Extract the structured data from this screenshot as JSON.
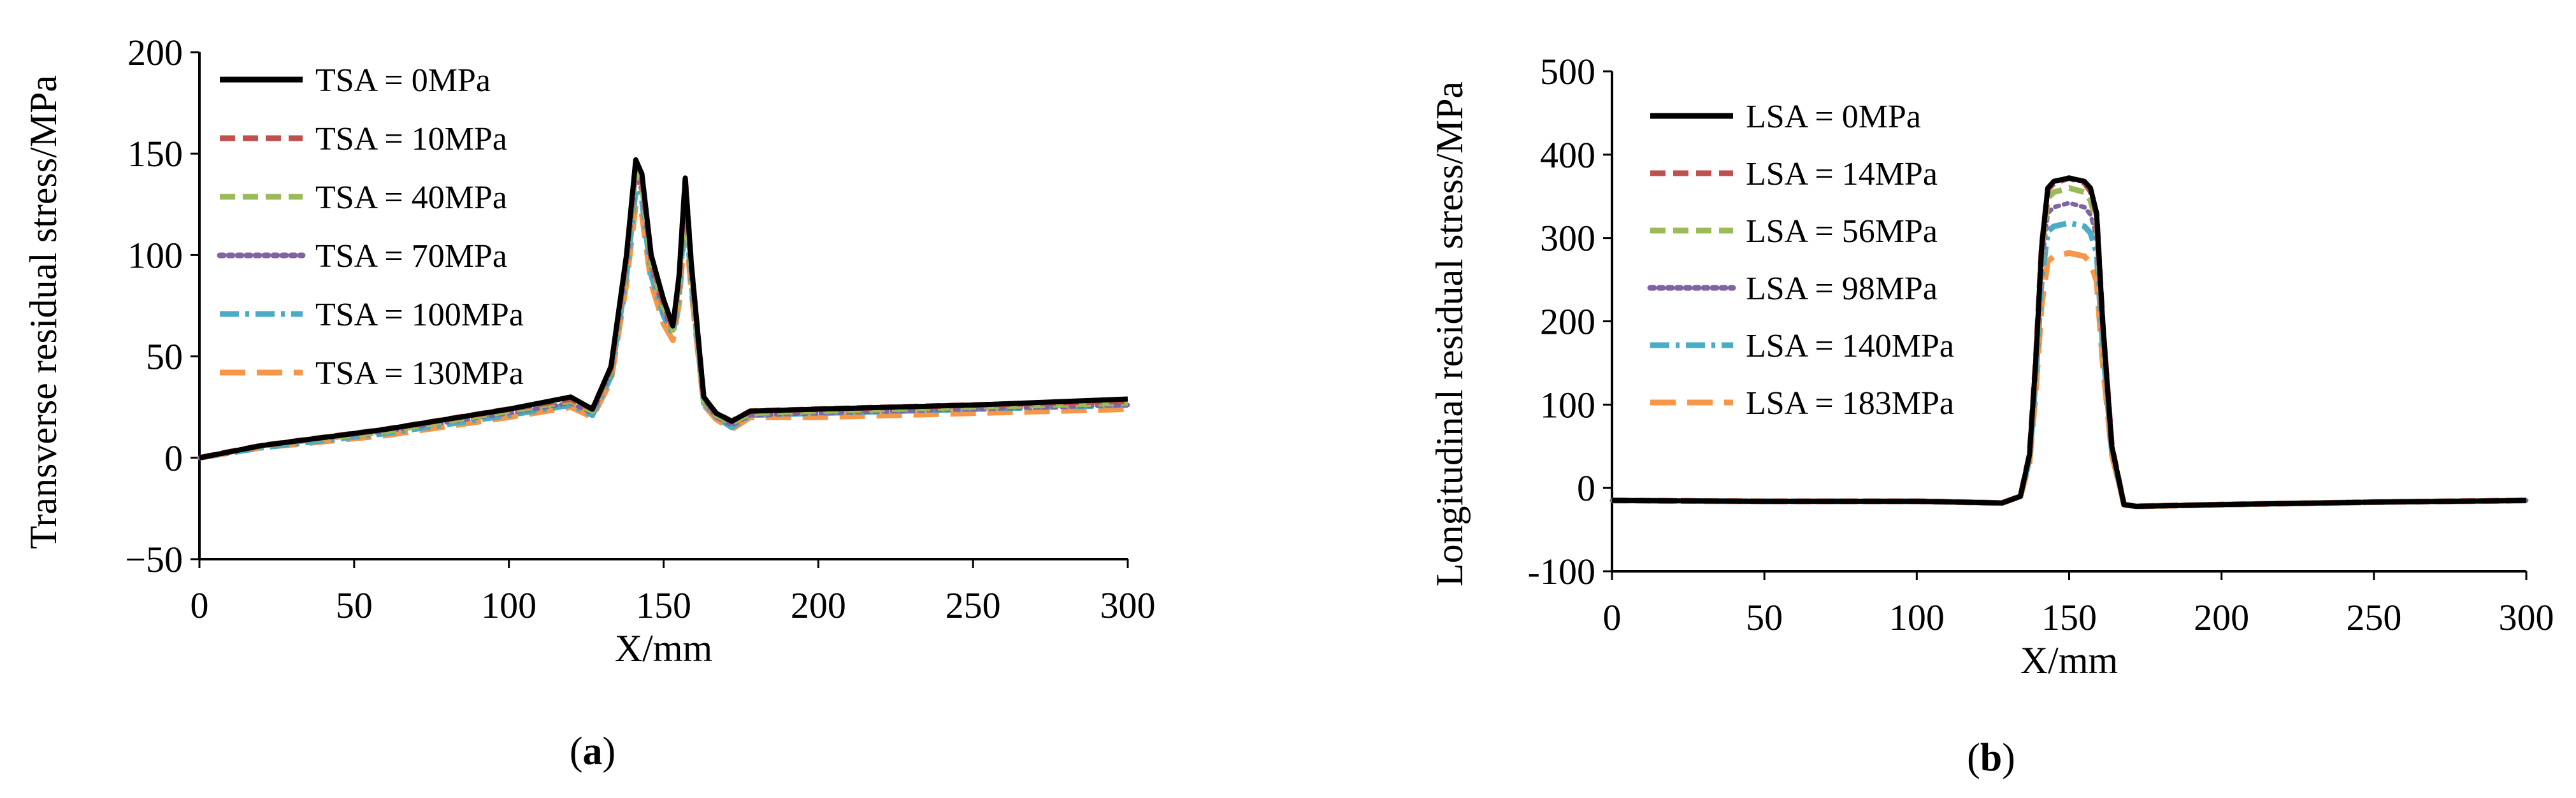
{
  "colors": {
    "s0": "#000000",
    "s1": "#c0504d",
    "s2": "#9bbb59",
    "s3": "#8064a2",
    "s4": "#4bacc6",
    "s5": "#f79646"
  },
  "chart_data": [
    {
      "type": "line",
      "panel": "(a)",
      "panel_open": "(",
      "panel_letter": "a",
      "panel_close": ")",
      "xlabel": "X/mm",
      "ylabel": "Transverse residual stress/MPa",
      "xlim": [
        0,
        300
      ],
      "ylim": [
        -50,
        200
      ],
      "xticks": [
        0,
        50,
        100,
        150,
        200,
        250,
        300
      ],
      "yticks": [
        -50,
        0,
        50,
        100,
        150,
        200
      ],
      "ytick_labels": [
        "−50",
        "0",
        "50",
        "100",
        "150",
        "200"
      ],
      "grid": false,
      "legend_position": "top-left",
      "series": [
        {
          "name": "TSA = 0MPa",
          "style": "solid",
          "x": [
            0,
            20,
            60,
            100,
            120,
            127,
            133,
            138,
            141,
            143,
            146,
            150,
            153,
            155,
            157,
            159,
            163,
            167,
            172,
            178,
            200,
            250,
            300
          ],
          "y": [
            0,
            6,
            14,
            24,
            30,
            24,
            45,
            100,
            147,
            140,
            100,
            78,
            65,
            90,
            138,
            95,
            30,
            22,
            18,
            23,
            24,
            26,
            29
          ]
        },
        {
          "name": "TSA = 10MPa",
          "style": "dash",
          "x": [
            0,
            20,
            60,
            100,
            120,
            127,
            133,
            138,
            141,
            143,
            146,
            150,
            153,
            155,
            157,
            159,
            163,
            167,
            172,
            178,
            200,
            250,
            300
          ],
          "y": [
            0,
            6,
            14,
            24,
            29,
            24,
            44,
            98,
            145,
            138,
            98,
            76,
            64,
            88,
            137,
            94,
            29,
            22,
            18,
            23,
            24,
            26,
            28
          ]
        },
        {
          "name": "TSA = 40MPa",
          "style": "dash",
          "x": [
            0,
            20,
            60,
            100,
            120,
            127,
            133,
            138,
            141,
            143,
            146,
            150,
            153,
            155,
            157,
            159,
            163,
            167,
            172,
            178,
            200,
            250,
            300
          ],
          "y": [
            0,
            6,
            13,
            23,
            28,
            23,
            43,
            96,
            142,
            135,
            96,
            74,
            63,
            86,
            135,
            92,
            28,
            21,
            17,
            22,
            23,
            25,
            27
          ]
        },
        {
          "name": "TSA = 70MPa",
          "style": "dot",
          "x": [
            0,
            20,
            60,
            100,
            120,
            127,
            133,
            138,
            141,
            143,
            146,
            150,
            153,
            155,
            157,
            159,
            163,
            167,
            172,
            178,
            200,
            250,
            300
          ],
          "y": [
            0,
            6,
            13,
            22,
            27,
            22,
            42,
            94,
            138,
            132,
            94,
            72,
            62,
            84,
            132,
            90,
            28,
            20,
            16,
            21,
            22,
            24,
            26
          ]
        },
        {
          "name": "TSA = 100MPa",
          "style": "dashdot",
          "x": [
            0,
            20,
            60,
            100,
            120,
            127,
            133,
            138,
            141,
            143,
            146,
            150,
            153,
            155,
            157,
            159,
            163,
            167,
            172,
            178,
            200,
            250,
            300
          ],
          "y": [
            0,
            5,
            12,
            21,
            26,
            21,
            40,
            90,
            132,
            127,
            90,
            70,
            61,
            80,
            126,
            86,
            27,
            20,
            15,
            21,
            22,
            24,
            26
          ]
        },
        {
          "name": "TSA = 130MPa",
          "style": "longdash",
          "x": [
            0,
            20,
            60,
            100,
            120,
            127,
            133,
            138,
            141,
            143,
            146,
            150,
            153,
            155,
            157,
            159,
            163,
            167,
            172,
            178,
            200,
            250,
            300
          ],
          "y": [
            0,
            5,
            11,
            20,
            25,
            20,
            38,
            86,
            125,
            120,
            86,
            66,
            58,
            76,
            118,
            82,
            26,
            19,
            14,
            20,
            20,
            22,
            24
          ]
        }
      ]
    },
    {
      "type": "line",
      "panel": "(b)",
      "panel_open": "(",
      "panel_letter": "b",
      "panel_close": ")",
      "xlabel": "X/mm",
      "ylabel": "Longitudinal residual stress/MPa",
      "xlim": [
        0,
        300
      ],
      "ylim": [
        -100,
        500
      ],
      "xticks": [
        0,
        50,
        100,
        150,
        200,
        250,
        300
      ],
      "yticks": [
        -100,
        0,
        100,
        200,
        300,
        400,
        500
      ],
      "ytick_labels": [
        "-100",
        "0",
        "100",
        "200",
        "300",
        "400",
        "500"
      ],
      "grid": false,
      "legend_position": "top-left",
      "series": [
        {
          "name": "LSA = 0MPa",
          "style": "solid",
          "x": [
            0,
            50,
            100,
            128,
            134,
            137,
            139,
            141,
            143,
            145,
            150,
            155,
            157,
            159,
            161,
            164,
            168,
            172,
            200,
            250,
            300
          ],
          "y": [
            -15,
            -16,
            -16,
            -18,
            -10,
            40,
            150,
            290,
            360,
            368,
            372,
            368,
            360,
            330,
            200,
            50,
            -20,
            -22,
            -20,
            -17,
            -15
          ]
        },
        {
          "name": "LSA = 14MPa",
          "style": "dash",
          "x": [
            0,
            50,
            100,
            128,
            134,
            137,
            139,
            141,
            143,
            145,
            150,
            155,
            157,
            159,
            161,
            164,
            168,
            172,
            200,
            250,
            300
          ],
          "y": [
            -15,
            -16,
            -16,
            -18,
            -10,
            40,
            150,
            290,
            358,
            366,
            372,
            366,
            356,
            328,
            198,
            50,
            -20,
            -22,
            -20,
            -17,
            -15
          ]
        },
        {
          "name": "LSA = 56MPa",
          "style": "dash",
          "x": [
            0,
            50,
            100,
            128,
            134,
            137,
            139,
            141,
            143,
            145,
            150,
            155,
            157,
            159,
            161,
            164,
            168,
            172,
            200,
            250,
            300
          ],
          "y": [
            -15,
            -16,
            -16,
            -18,
            -10,
            38,
            145,
            280,
            348,
            355,
            360,
            355,
            345,
            318,
            192,
            48,
            -20,
            -22,
            -20,
            -17,
            -15
          ]
        },
        {
          "name": "LSA = 98MPa",
          "style": "dot",
          "x": [
            0,
            50,
            100,
            128,
            134,
            137,
            139,
            141,
            143,
            145,
            150,
            155,
            157,
            159,
            161,
            164,
            168,
            172,
            200,
            250,
            300
          ],
          "y": [
            -15,
            -16,
            -16,
            -18,
            -10,
            36,
            138,
            265,
            330,
            337,
            342,
            337,
            328,
            302,
            182,
            46,
            -20,
            -22,
            -20,
            -17,
            -15
          ]
        },
        {
          "name": "LSA = 140MPa",
          "style": "dashdot",
          "x": [
            0,
            50,
            100,
            128,
            134,
            137,
            139,
            141,
            143,
            145,
            150,
            155,
            157,
            159,
            161,
            164,
            168,
            172,
            200,
            250,
            300
          ],
          "y": [
            -15,
            -16,
            -16,
            -18,
            -10,
            34,
            128,
            248,
            308,
            314,
            318,
            314,
            306,
            282,
            170,
            44,
            -20,
            -22,
            -20,
            -17,
            -15
          ]
        },
        {
          "name": "LSA = 183MPa",
          "style": "longdash",
          "x": [
            0,
            50,
            100,
            128,
            134,
            137,
            139,
            141,
            143,
            145,
            150,
            155,
            157,
            159,
            161,
            164,
            168,
            172,
            200,
            250,
            300
          ],
          "y": [
            -15,
            -16,
            -16,
            -18,
            -10,
            30,
            112,
            220,
            272,
            278,
            282,
            278,
            270,
            248,
            150,
            40,
            -20,
            -22,
            -20,
            -17,
            -15
          ]
        }
      ]
    }
  ]
}
